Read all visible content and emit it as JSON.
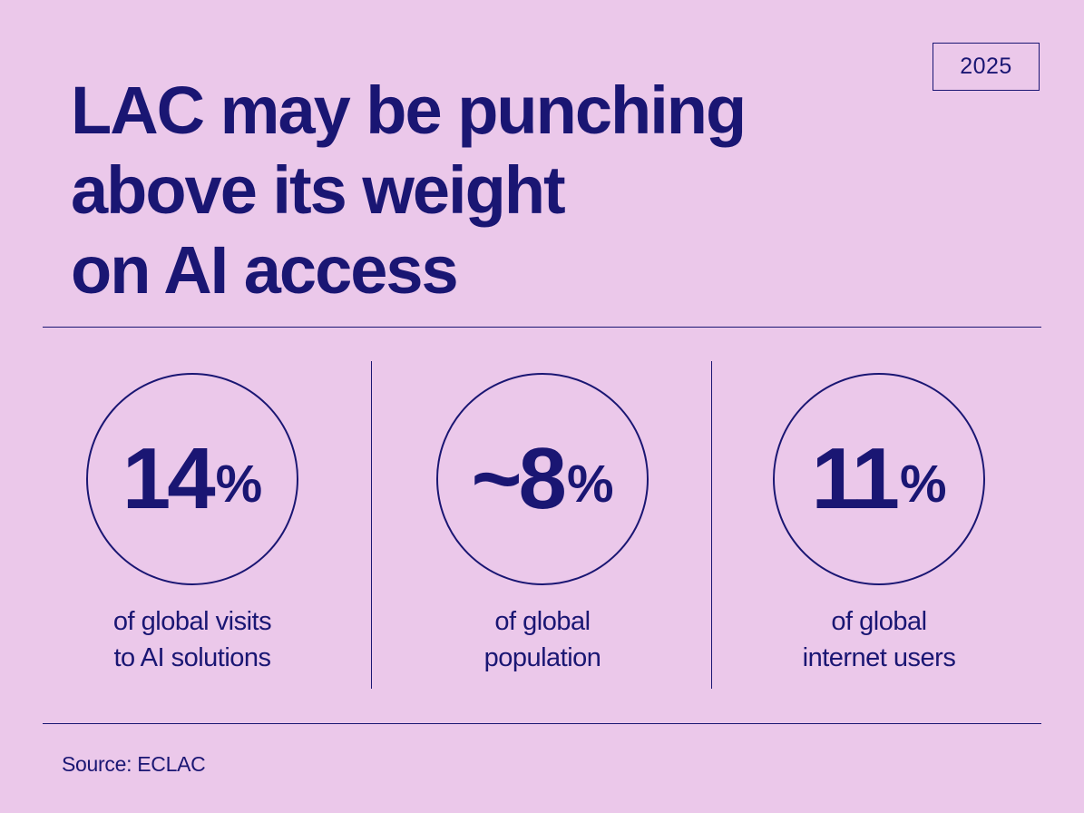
{
  "year": "2025",
  "title_lines": [
    "LAC may be punching",
    "above its weight",
    "on AI access"
  ],
  "stats": [
    {
      "value": "14",
      "unit": "%",
      "description_lines": [
        "of global visits",
        "to AI solutions"
      ]
    },
    {
      "value": "~8",
      "unit": "%",
      "description_lines": [
        "of global",
        "population"
      ]
    },
    {
      "value": "11",
      "unit": "%",
      "description_lines": [
        "of global",
        "internet users"
      ]
    }
  ],
  "source": "Source: ECLAC",
  "colors": {
    "background": "#ebc8ea",
    "ink": "#1a1673"
  }
}
